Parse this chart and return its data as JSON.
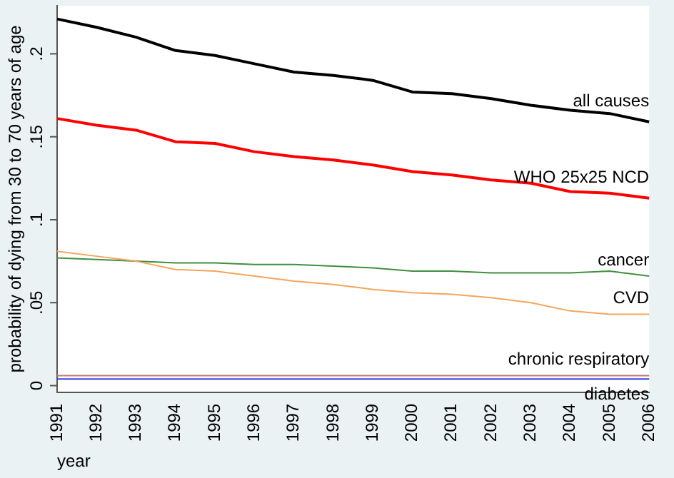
{
  "chart_data": {
    "type": "line",
    "xlabel": "year",
    "ylabel": "probability of dying from 30 to 70 years of age",
    "categories": [
      "1991",
      "1992",
      "1993",
      "1994",
      "1995",
      "1996",
      "1997",
      "1998",
      "1999",
      "2000",
      "2001",
      "2002",
      "2003",
      "2004",
      "2005",
      "2006"
    ],
    "series": [
      {
        "name": "all causes",
        "color": "#000000",
        "values": [
          0.221,
          0.216,
          0.21,
          0.202,
          0.199,
          0.194,
          0.189,
          0.187,
          0.184,
          0.177,
          0.176,
          0.173,
          0.169,
          0.166,
          0.164,
          0.159
        ]
      },
      {
        "name": "WHO 25x25 NCD",
        "color": "#ff0000",
        "values": [
          0.161,
          0.157,
          0.154,
          0.147,
          0.146,
          0.141,
          0.138,
          0.136,
          0.133,
          0.129,
          0.127,
          0.124,
          0.122,
          0.117,
          0.116,
          0.113
        ]
      },
      {
        "name": "cancer",
        "color": "#3f8f3f",
        "values": [
          0.077,
          0.076,
          0.075,
          0.074,
          0.074,
          0.073,
          0.073,
          0.072,
          0.071,
          0.069,
          0.069,
          0.068,
          0.068,
          0.068,
          0.069,
          0.066
        ]
      },
      {
        "name": "CVD",
        "color": "#f5a55a",
        "values": [
          0.081,
          0.078,
          0.075,
          0.07,
          0.069,
          0.066,
          0.063,
          0.061,
          0.058,
          0.056,
          0.055,
          0.053,
          0.05,
          0.045,
          0.043,
          0.043
        ]
      },
      {
        "name": "chronic respiratory",
        "color": "#c07878",
        "values": [
          0.006,
          0.006,
          0.006,
          0.006,
          0.006,
          0.006,
          0.006,
          0.006,
          0.006,
          0.006,
          0.006,
          0.006,
          0.006,
          0.006,
          0.006,
          0.006
        ]
      },
      {
        "name": "diabetes",
        "color": "#4040e0",
        "values": [
          0.004,
          0.004,
          0.004,
          0.004,
          0.004,
          0.004,
          0.004,
          0.004,
          0.004,
          0.004,
          0.004,
          0.004,
          0.004,
          0.004,
          0.004,
          0.004
        ]
      }
    ],
    "ylim": [
      -0.004,
      0.229
    ],
    "yticks": [
      {
        "value": 0,
        "label": "0"
      },
      {
        "value": 0.05,
        "label": ".05"
      },
      {
        "value": 0.1,
        "label": ".1"
      },
      {
        "value": 0.15,
        "label": ".15"
      },
      {
        "value": 0.2,
        "label": ".2"
      }
    ],
    "grid": false,
    "legend": false,
    "marker": "none",
    "line_style": "solid"
  }
}
